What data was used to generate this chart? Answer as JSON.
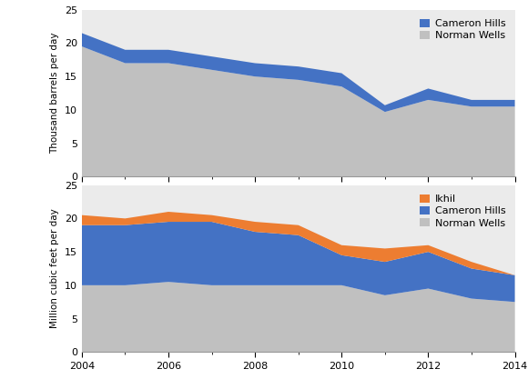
{
  "years": [
    2004,
    2005,
    2006,
    2007,
    2008,
    2009,
    2010,
    2011,
    2012,
    2013,
    2014
  ],
  "oil_total": [
    21.5,
    19.0,
    19.0,
    18.0,
    17.0,
    16.5,
    15.5,
    10.7,
    13.2,
    11.5,
    11.5
  ],
  "oil_norman_wells": [
    19.5,
    17.0,
    17.0,
    16.0,
    15.0,
    14.5,
    13.5,
    9.7,
    11.5,
    10.5,
    10.5
  ],
  "gas_norman_wells": [
    10.0,
    10.0,
    10.5,
    10.0,
    10.0,
    10.0,
    10.0,
    8.5,
    9.5,
    8.0,
    7.5
  ],
  "gas_cameron_hills": [
    19.0,
    19.0,
    19.5,
    19.5,
    18.0,
    17.5,
    14.5,
    13.5,
    15.0,
    12.5,
    11.5
  ],
  "gas_ikhil": [
    20.5,
    20.0,
    21.0,
    20.5,
    19.5,
    19.0,
    16.0,
    15.5,
    16.0,
    13.5,
    11.5
  ],
  "color_cameron_hills_oil": "#4472C4",
  "color_norman_wells_oil": "#C0C0C0",
  "color_ikhil": "#ED7D31",
  "color_cameron_hills_gas": "#4472C4",
  "color_norman_wells_gas": "#C0C0C0",
  "oil_ylabel": "Thousand barrels per day",
  "gas_ylabel": "Million cubic feet per day",
  "ylim": [
    0,
    25
  ],
  "yticks": [
    0,
    5,
    10,
    15,
    20,
    25
  ],
  "bg_color": "#EBEBEB",
  "legend_oil": [
    {
      "label": "Cameron Hills",
      "color": "#4472C4"
    },
    {
      "label": "Norman Wells",
      "color": "#C0C0C0"
    }
  ],
  "legend_gas": [
    {
      "label": "Ikhil",
      "color": "#ED7D31"
    },
    {
      "label": "Cameron Hills",
      "color": "#4472C4"
    },
    {
      "label": "Norman Wells",
      "color": "#C0C0C0"
    }
  ]
}
